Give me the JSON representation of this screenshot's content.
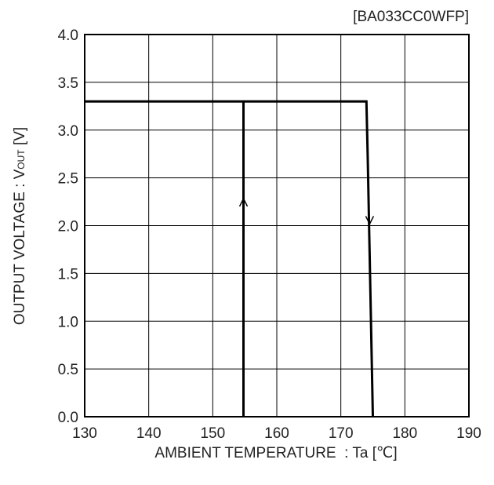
{
  "chart_data": {
    "type": "line",
    "title": "[BA033CC0WFP]",
    "xlabel": "AMBIENT TEMPERATURE  : Ta [℃]",
    "ylabel": {
      "main": "OUTPUT VOLTAGE : V",
      "subscript": "OUT",
      "unit": " [V]"
    },
    "xlim": [
      130,
      190
    ],
    "ylim": [
      0,
      4.0
    ],
    "x_ticks": [
      "130",
      "140",
      "150",
      "160",
      "170",
      "180",
      "190"
    ],
    "y_ticks": [
      "0.0",
      "0.5",
      "1.0",
      "1.5",
      "2.0",
      "2.5",
      "3.0",
      "3.5",
      "4.0"
    ],
    "grid": true,
    "series": [
      {
        "direction": "rising",
        "x": [
          130,
          174,
          174.2,
          175
        ],
        "y": [
          3.3,
          3.3,
          2.7,
          0
        ]
      },
      {
        "direction": "falling",
        "x": [
          154.8,
          154.8
        ],
        "y": [
          0,
          3.3
        ]
      }
    ],
    "annotations": [
      {
        "type": "arrow-up",
        "x": 154.8,
        "y": 2.25
      },
      {
        "type": "arrow-down",
        "x": 174.5,
        "y": 2.05
      }
    ],
    "colors": {
      "line": "#000000",
      "grid": "#000000",
      "text": "#222222"
    }
  }
}
